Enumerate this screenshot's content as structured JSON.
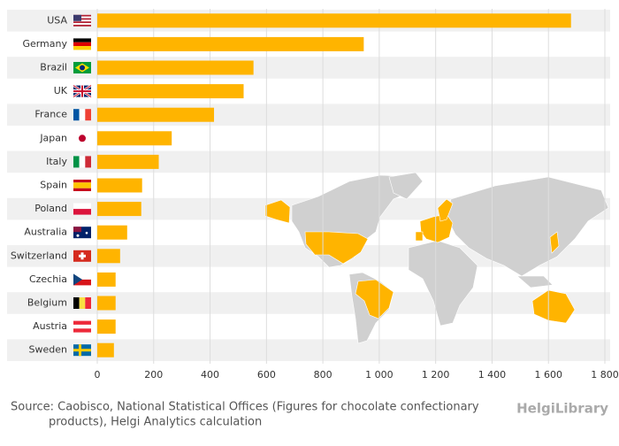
{
  "chart_data": {
    "type": "bar",
    "orientation": "horizontal",
    "categories": [
      "USA",
      "Germany",
      "Brazil",
      "UK",
      "France",
      "Japan",
      "Italy",
      "Spain",
      "Poland",
      "Australia",
      "Switzerland",
      "Czechia",
      "Belgium",
      "Austria",
      "Sweden"
    ],
    "values": [
      1680,
      945,
      554,
      519,
      414,
      264,
      218,
      159,
      156,
      106,
      81,
      65,
      65,
      65,
      59
    ],
    "color": "#ffb400",
    "xlim": [
      0,
      1800
    ],
    "xticks": [
      0,
      200,
      400,
      600,
      800,
      {
        "value": 1000,
        "label": "1 000"
      },
      {
        "value": 1200,
        "label": "1 200"
      },
      {
        "value": 1400,
        "label": "1 400"
      },
      {
        "value": 1600,
        "label": "1 600"
      },
      {
        "value": 1800,
        "label": "1 800"
      }
    ],
    "grid": true,
    "source": [
      "Source: Caobisco, National Statistical Offices (Figures for chocolate confectionary",
      "products), Helgi Analytics calculation"
    ],
    "logo": "HelgiLibrary"
  }
}
